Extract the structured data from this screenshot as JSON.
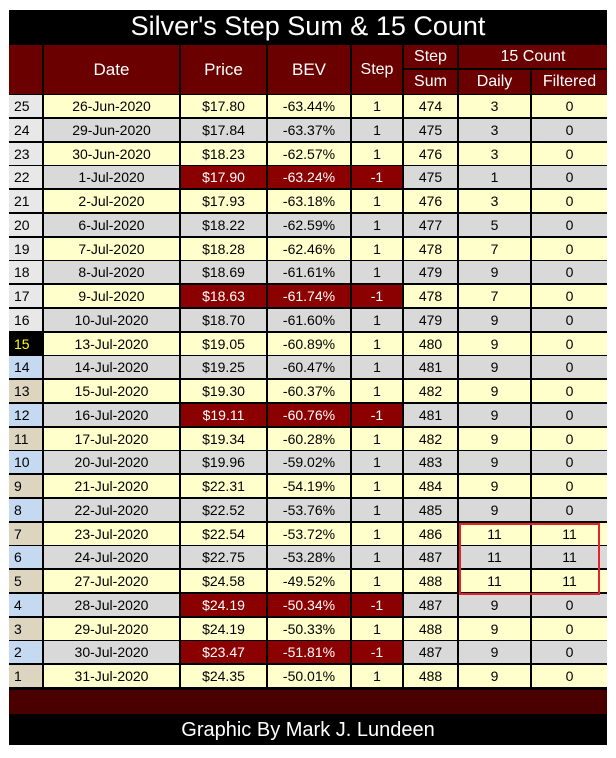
{
  "title": "Silver's Step Sum & 15 Count",
  "headers": {
    "date": "Date",
    "price": "Price",
    "bev": "BEV",
    "step": "Step",
    "step_sum_top": "Step",
    "step_sum_bottom": "Sum",
    "count_group": "15 Count",
    "daily": "Daily",
    "filtered": "Filtered"
  },
  "rows": [
    {
      "n": "25",
      "date": "26-Jun-2020",
      "price": "$17.80",
      "bev": "-63.44%",
      "step": "1",
      "sum": "474",
      "daily": "3",
      "filtered": "0"
    },
    {
      "n": "24",
      "date": "29-Jun-2020",
      "price": "$17.84",
      "bev": "-63.37%",
      "step": "1",
      "sum": "475",
      "daily": "3",
      "filtered": "0"
    },
    {
      "n": "23",
      "date": "30-Jun-2020",
      "price": "$18.23",
      "bev": "-62.57%",
      "step": "1",
      "sum": "476",
      "daily": "3",
      "filtered": "0"
    },
    {
      "n": "22",
      "date": "1-Jul-2020",
      "price": "$17.90",
      "bev": "-63.24%",
      "step": "-1",
      "sum": "475",
      "daily": "1",
      "filtered": "0"
    },
    {
      "n": "21",
      "date": "2-Jul-2020",
      "price": "$17.93",
      "bev": "-63.18%",
      "step": "1",
      "sum": "476",
      "daily": "3",
      "filtered": "0"
    },
    {
      "n": "20",
      "date": "6-Jul-2020",
      "price": "$18.22",
      "bev": "-62.59%",
      "step": "1",
      "sum": "477",
      "daily": "5",
      "filtered": "0"
    },
    {
      "n": "19",
      "date": "7-Jul-2020",
      "price": "$18.28",
      "bev": "-62.46%",
      "step": "1",
      "sum": "478",
      "daily": "7",
      "filtered": "0"
    },
    {
      "n": "18",
      "date": "8-Jul-2020",
      "price": "$18.69",
      "bev": "-61.61%",
      "step": "1",
      "sum": "479",
      "daily": "9",
      "filtered": "0"
    },
    {
      "n": "17",
      "date": "9-Jul-2020",
      "price": "$18.63",
      "bev": "-61.74%",
      "step": "-1",
      "sum": "478",
      "daily": "7",
      "filtered": "0"
    },
    {
      "n": "16",
      "date": "10-Jul-2020",
      "price": "$18.70",
      "bev": "-61.60%",
      "step": "1",
      "sum": "479",
      "daily": "9",
      "filtered": "0"
    },
    {
      "n": "15",
      "date": "13-Jul-2020",
      "price": "$19.05",
      "bev": "-60.89%",
      "step": "1",
      "sum": "480",
      "daily": "9",
      "filtered": "0"
    },
    {
      "n": "14",
      "date": "14-Jul-2020",
      "price": "$19.25",
      "bev": "-60.47%",
      "step": "1",
      "sum": "481",
      "daily": "9",
      "filtered": "0"
    },
    {
      "n": "13",
      "date": "15-Jul-2020",
      "price": "$19.30",
      "bev": "-60.37%",
      "step": "1",
      "sum": "482",
      "daily": "9",
      "filtered": "0"
    },
    {
      "n": "12",
      "date": "16-Jul-2020",
      "price": "$19.11",
      "bev": "-60.76%",
      "step": "-1",
      "sum": "481",
      "daily": "9",
      "filtered": "0"
    },
    {
      "n": "11",
      "date": "17-Jul-2020",
      "price": "$19.34",
      "bev": "-60.28%",
      "step": "1",
      "sum": "482",
      "daily": "9",
      "filtered": "0"
    },
    {
      "n": "10",
      "date": "20-Jul-2020",
      "price": "$19.96",
      "bev": "-59.02%",
      "step": "1",
      "sum": "483",
      "daily": "9",
      "filtered": "0"
    },
    {
      "n": "9",
      "date": "21-Jul-2020",
      "price": "$22.31",
      "bev": "-54.19%",
      "step": "1",
      "sum": "484",
      "daily": "9",
      "filtered": "0"
    },
    {
      "n": "8",
      "date": "22-Jul-2020",
      "price": "$22.52",
      "bev": "-53.76%",
      "step": "1",
      "sum": "485",
      "daily": "9",
      "filtered": "0"
    },
    {
      "n": "7",
      "date": "23-Jul-2020",
      "price": "$22.54",
      "bev": "-53.72%",
      "step": "1",
      "sum": "486",
      "daily": "11",
      "filtered": "11"
    },
    {
      "n": "6",
      "date": "24-Jul-2020",
      "price": "$22.75",
      "bev": "-53.28%",
      "step": "1",
      "sum": "487",
      "daily": "11",
      "filtered": "11"
    },
    {
      "n": "5",
      "date": "27-Jul-2020",
      "price": "$24.58",
      "bev": "-49.52%",
      "step": "1",
      "sum": "488",
      "daily": "11",
      "filtered": "11"
    },
    {
      "n": "4",
      "date": "28-Jul-2020",
      "price": "$24.19",
      "bev": "-50.34%",
      "step": "-1",
      "sum": "487",
      "daily": "9",
      "filtered": "0"
    },
    {
      "n": "3",
      "date": "29-Jul-2020",
      "price": "$24.19",
      "bev": "-50.33%",
      "step": "1",
      "sum": "488",
      "daily": "9",
      "filtered": "0"
    },
    {
      "n": "2",
      "date": "30-Jul-2020",
      "price": "$23.47",
      "bev": "-51.81%",
      "step": "-1",
      "sum": "487",
      "daily": "9",
      "filtered": "0"
    },
    {
      "n": "1",
      "date": "31-Jul-2020",
      "price": "$24.35",
      "bev": "-50.01%",
      "step": "1",
      "sum": "488",
      "daily": "9",
      "filtered": "0"
    }
  ],
  "footer": "Graphic By Mark J. Lundeen",
  "colors": {
    "frame": "#000000",
    "header": "#6b0000",
    "negative_step": "#8b0000",
    "row_light": "#ffffcc",
    "row_gray": "#d9d9d9",
    "index_blue": "#c5d9f1",
    "index_tan": "#ddd5c0",
    "index_gray": "#e8e8e8",
    "index_highlight_bg": "#000000",
    "index_highlight_fg": "#ffff00",
    "highlight_box": "#e8202a"
  }
}
